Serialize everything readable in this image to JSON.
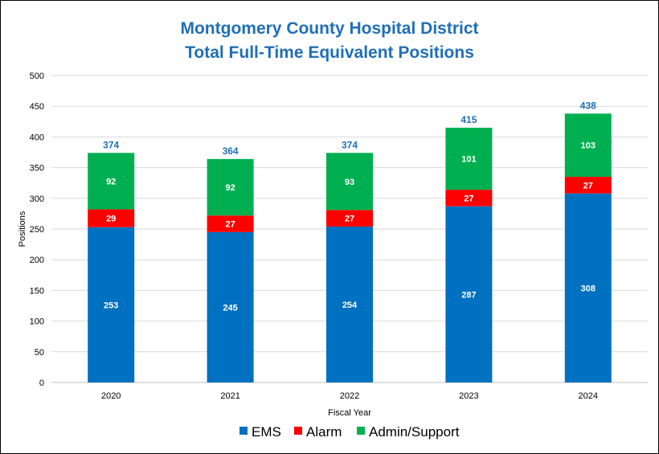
{
  "chart_data": {
    "type": "bar",
    "stacked": true,
    "title": "Montgomery County Hospital District",
    "subtitle": "Total Full-Time Equivalent Positions",
    "xlabel": "Fiscal Year",
    "ylabel": "Positions",
    "ylim": [
      0,
      500
    ],
    "yticks": [
      0,
      50,
      100,
      150,
      200,
      250,
      300,
      350,
      400,
      450,
      500
    ],
    "grid": true,
    "legend_position": "bottom",
    "categories": [
      "2020",
      "2021",
      "2022",
      "2023",
      "2024"
    ],
    "series": [
      {
        "name": "EMS",
        "color": "#0070c0",
        "values": [
          253,
          245,
          254,
          287,
          308
        ]
      },
      {
        "name": "Alarm",
        "color": "#ff0000",
        "values": [
          29,
          27,
          27,
          27,
          27
        ]
      },
      {
        "name": "Admin/Support",
        "color": "#00b050",
        "values": [
          92,
          92,
          93,
          101,
          103
        ]
      }
    ],
    "totals": [
      374,
      364,
      374,
      415,
      438
    ]
  }
}
